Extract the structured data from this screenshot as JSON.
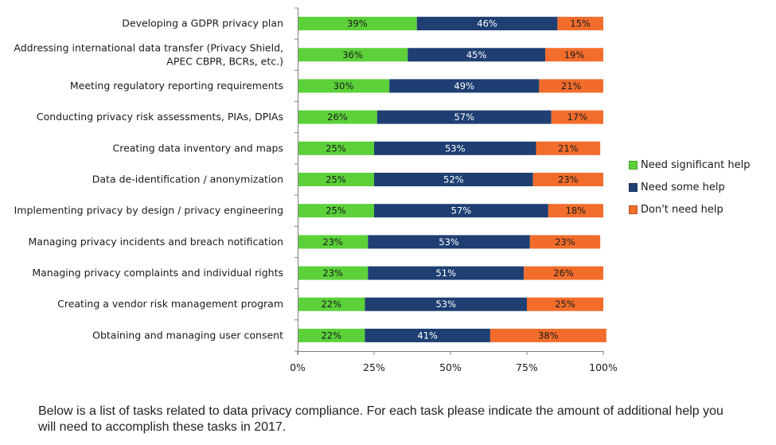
{
  "chart_data": {
    "type": "bar",
    "orientation": "horizontal",
    "stacked": "percent",
    "categories": [
      "Developing a GDPR privacy plan",
      "Addressing international data transfer (Privacy Shield,|APEC CBPR, BCRs, etc.)",
      "Meeting regulatory reporting requirements",
      "Conducting privacy risk assessments, PIAs, DPIAs",
      "Creating data inventory and maps",
      "Data de-identification / anonymization",
      "Implementing privacy by design / privacy engineering",
      "Managing privacy incidents and breach notification",
      "Managing privacy complaints and individual rights",
      "Creating a vendor risk management program",
      "Obtaining and managing user consent"
    ],
    "series": [
      {
        "name": "Need significant help",
        "color": "#5cd13a",
        "label_color": "#1a1a1a",
        "values": [
          39,
          36,
          30,
          26,
          25,
          25,
          25,
          23,
          23,
          22,
          22
        ]
      },
      {
        "name": "Need some help",
        "color": "#1f3f73",
        "label_color": "#ffffff",
        "values": [
          46,
          45,
          49,
          57,
          53,
          52,
          57,
          53,
          51,
          53,
          41
        ]
      },
      {
        "name": "Don't need help",
        "color": "#f26d2c",
        "label_color": "#1a1a1a",
        "values": [
          15,
          19,
          21,
          17,
          21,
          23,
          18,
          23,
          26,
          25,
          38
        ]
      }
    ],
    "xlim": [
      0,
      100
    ],
    "xticks": [
      "0%",
      "25%",
      "50%",
      "75%",
      "100%"
    ],
    "legend_position": "right",
    "grid": false
  },
  "caption": "Below is a list of tasks related to data privacy compliance. For each task please indicate the amount of additional help you will need to accomplish these tasks in 2017."
}
